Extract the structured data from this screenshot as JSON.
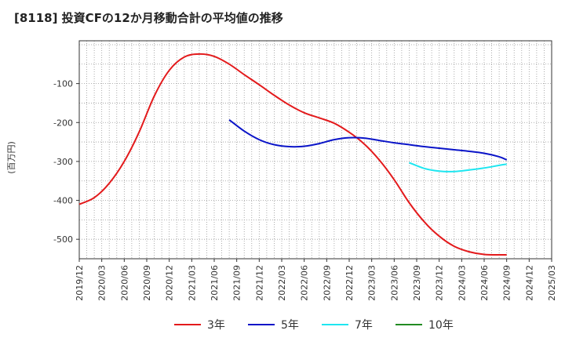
{
  "title": "[8118]  投資CFの12か月移動合計の平均値の推移",
  "chart_data": {
    "type": "line",
    "ylabel": "(百万円)",
    "xlabel": "",
    "ylim": [
      -550,
      10
    ],
    "yticks": [
      -100,
      -200,
      -300,
      -400,
      -500
    ],
    "xlim": [
      "2019/12",
      "2025/03"
    ],
    "xticks": [
      "2019/12",
      "2020/03",
      "2020/06",
      "2020/09",
      "2020/12",
      "2021/03",
      "2021/06",
      "2021/09",
      "2021/12",
      "2022/03",
      "2022/06",
      "2022/09",
      "2022/12",
      "2023/03",
      "2023/06",
      "2023/09",
      "2023/12",
      "2024/03",
      "2024/06",
      "2024/09",
      "2024/12",
      "2025/03"
    ],
    "grid": true,
    "legend_position": "bottom",
    "series": [
      {
        "name": "3年",
        "color": "#e31a1c",
        "x": [
          "2019/12",
          "2020/02",
          "2020/04",
          "2020/06",
          "2020/08",
          "2020/10",
          "2020/12",
          "2021/02",
          "2021/04",
          "2021/06",
          "2021/08",
          "2021/10",
          "2021/12",
          "2022/02",
          "2022/04",
          "2022/06",
          "2022/08",
          "2022/10",
          "2022/12",
          "2023/02",
          "2023/04",
          "2023/06",
          "2023/08",
          "2023/10",
          "2023/12",
          "2024/02",
          "2024/04",
          "2024/06",
          "2024/08",
          "2024/09"
        ],
        "values": [
          -410,
          -393,
          -356,
          -300,
          -224,
          -132,
          -66,
          -32,
          -24,
          -30,
          -50,
          -77,
          -103,
          -130,
          -155,
          -175,
          -188,
          -202,
          -225,
          -255,
          -296,
          -347,
          -406,
          -455,
          -492,
          -518,
          -532,
          -539,
          -540,
          -540
        ]
      },
      {
        "name": "5年",
        "color": "#0a14c8",
        "x": [
          "2021/08",
          "2021/10",
          "2021/12",
          "2022/02",
          "2022/04",
          "2022/06",
          "2022/08",
          "2022/10",
          "2022/12",
          "2023/02",
          "2023/04",
          "2023/06",
          "2023/08",
          "2023/10",
          "2023/12",
          "2024/02",
          "2024/04",
          "2024/06",
          "2024/08",
          "2024/09"
        ],
        "values": [
          -193,
          -222,
          -244,
          -257,
          -262,
          -261,
          -254,
          -244,
          -239,
          -240,
          -246,
          -252,
          -257,
          -262,
          -266,
          -270,
          -274,
          -279,
          -288,
          -296
        ]
      },
      {
        "name": "7年",
        "color": "#1ee6f0",
        "x": [
          "2023/08",
          "2023/10",
          "2023/12",
          "2024/02",
          "2024/04",
          "2024/06",
          "2024/08",
          "2024/09"
        ],
        "values": [
          -303,
          -318,
          -325,
          -326,
          -322,
          -317,
          -310,
          -307
        ]
      },
      {
        "name": "10年",
        "color": "#228b22",
        "x": [],
        "values": []
      }
    ]
  }
}
